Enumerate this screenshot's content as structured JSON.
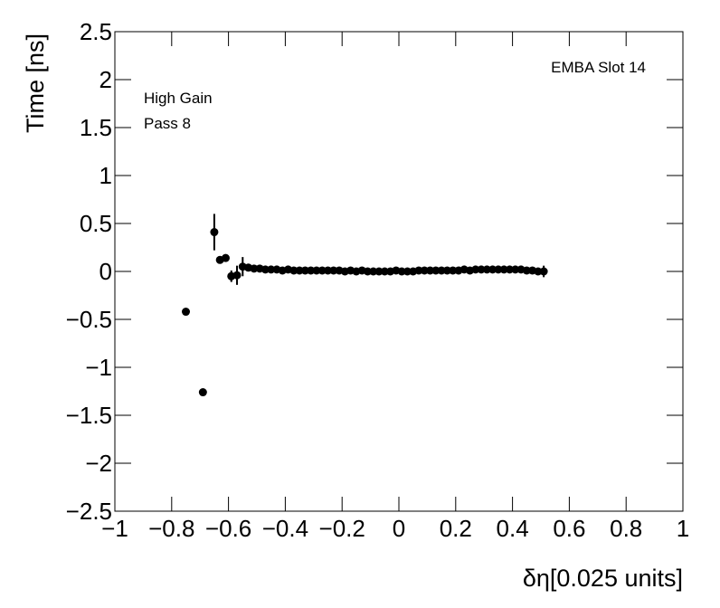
{
  "chart_data": {
    "type": "scatter",
    "x_label": "δη[0.025 units]",
    "y_label": "Time [ns]",
    "annotations": [
      "EMBA Slot 14",
      "High Gain",
      "Pass 8"
    ],
    "color": "#000000",
    "x": [
      -0.75,
      -0.69,
      -0.65,
      -0.63,
      -0.61,
      -0.59,
      -0.57,
      -0.55,
      -0.53,
      -0.51,
      -0.49,
      -0.47,
      -0.45,
      -0.43,
      -0.41,
      -0.39,
      -0.37,
      -0.35,
      -0.33,
      -0.31,
      -0.29,
      -0.27,
      -0.25,
      -0.23,
      -0.21,
      -0.19,
      -0.17,
      -0.15,
      -0.13,
      -0.11,
      -0.09,
      -0.07,
      -0.05,
      -0.03,
      -0.01,
      0.01,
      0.03,
      0.05,
      0.07,
      0.09,
      0.11,
      0.13,
      0.15,
      0.17,
      0.19,
      0.21,
      0.23,
      0.25,
      0.27,
      0.29,
      0.31,
      0.33,
      0.35,
      0.37,
      0.39,
      0.41,
      0.43,
      0.45,
      0.47,
      0.49,
      0.51
    ],
    "values": [
      -0.42,
      -1.26,
      0.41,
      0.12,
      0.14,
      -0.05,
      -0.04,
      0.05,
      0.04,
      0.03,
      0.03,
      0.02,
      0.02,
      0.02,
      0.01,
      0.02,
      0.01,
      0.01,
      0.01,
      0.01,
      0.01,
      0.01,
      0.01,
      0.01,
      0.01,
      0,
      0.01,
      0,
      0.01,
      0,
      0,
      0,
      0,
      0,
      0.01,
      0,
      0,
      0,
      0.01,
      0.01,
      0.01,
      0.01,
      0.01,
      0.01,
      0.01,
      0.01,
      0.02,
      0.01,
      0.02,
      0.02,
      0.02,
      0.02,
      0.02,
      0.02,
      0.02,
      0.02,
      0.02,
      0.01,
      0.01,
      0,
      0
    ],
    "errors": [
      0.02,
      0.02,
      0.19,
      0.02,
      0.02,
      0.06,
      0.1,
      0.1,
      0.01,
      0.01,
      0.01,
      0.01,
      0.01,
      0.01,
      0.01,
      0.01,
      0.01,
      0.01,
      0.01,
      0.01,
      0.01,
      0.01,
      0.01,
      0.01,
      0.01,
      0.01,
      0.01,
      0.01,
      0.01,
      0.01,
      0.01,
      0.01,
      0.01,
      0.01,
      0.01,
      0.01,
      0.01,
      0.01,
      0.01,
      0.01,
      0.01,
      0.01,
      0.01,
      0.01,
      0.01,
      0.01,
      0.01,
      0.01,
      0.01,
      0.01,
      0.01,
      0.01,
      0.01,
      0.01,
      0.01,
      0.01,
      0.01,
      0.01,
      0.01,
      0.01,
      0.06
    ],
    "xlim": [
      -1,
      1
    ],
    "xticks": [
      {
        "value": -1,
        "label": "−1"
      },
      {
        "value": -0.8,
        "label": "−0.8"
      },
      {
        "value": -0.6,
        "label": "−0.6"
      },
      {
        "value": -0.4,
        "label": "−0.4"
      },
      {
        "value": -0.2,
        "label": "−0.2"
      },
      0,
      0.2,
      0.4,
      0.6,
      0.8,
      1
    ],
    "ylim": [
      -2.5,
      2.5
    ],
    "yticks": [
      {
        "value": -2.5,
        "label": "−2.5"
      },
      {
        "value": -2,
        "label": "−2"
      },
      {
        "value": -1.5,
        "label": "−1.5"
      },
      {
        "value": -1,
        "label": "−1"
      },
      {
        "value": -0.5,
        "label": "−0.5"
      },
      0,
      0.5,
      1,
      1.5,
      2,
      2.5
    ]
  }
}
